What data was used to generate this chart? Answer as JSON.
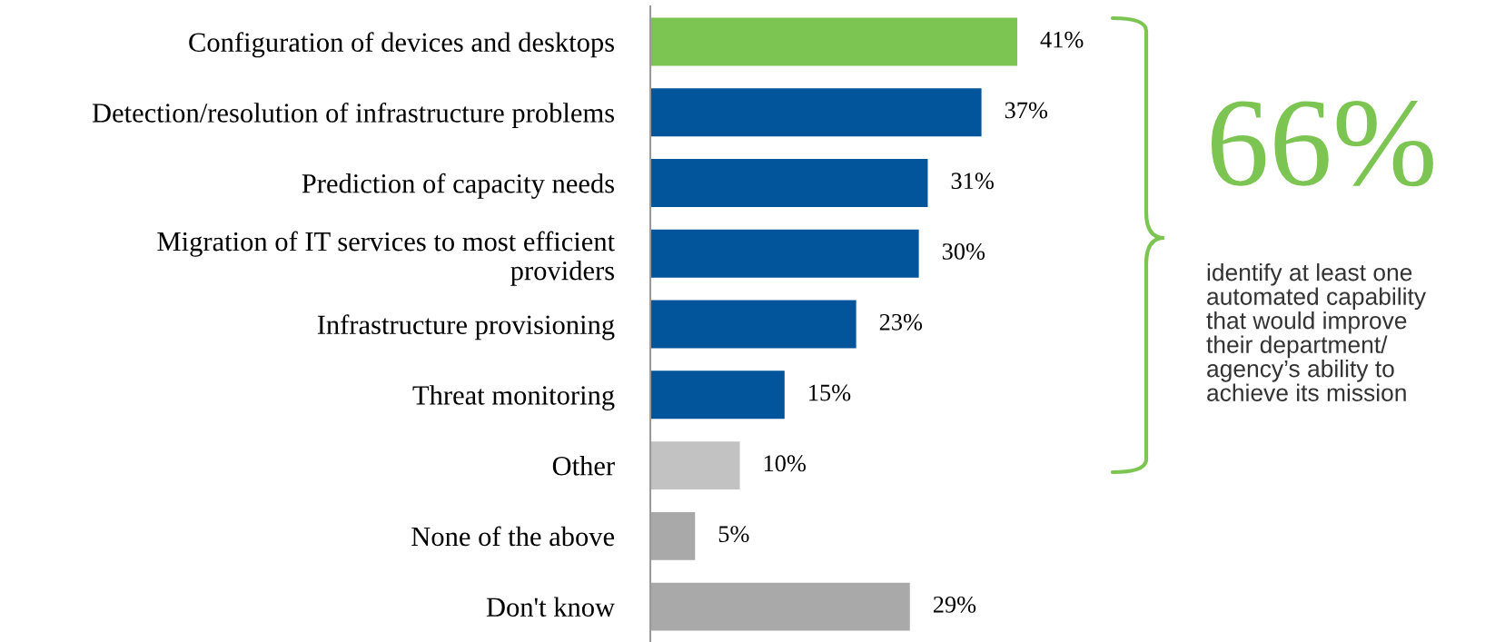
{
  "chart_data": {
    "type": "bar",
    "orientation": "horizontal",
    "categories": [
      "Configuration of devices and desktops",
      "Detection/resolution of infrastructure problems",
      "Prediction of capacity needs",
      "Migration of IT services to most efficient\nproviders",
      "Infrastructure provisioning",
      "Threat monitoring",
      "Other",
      "None of the above",
      "Don't know"
    ],
    "values": [
      41,
      37,
      31,
      30,
      23,
      15,
      10,
      5,
      29
    ],
    "colors": [
      "#7dc552",
      "#02559a",
      "#02559a",
      "#02559a",
      "#02559a",
      "#02559a",
      "#c2c2c2",
      "#a9a9a9",
      "#a9a9a9"
    ],
    "value_labels": [
      "41%",
      "37%",
      "31%",
      "30%",
      "23%",
      "15%",
      "10%",
      "5%",
      "29%"
    ],
    "tick_labels": "y",
    "grid": false,
    "legend": false,
    "annotations": [
      "66%",
      "identify at least one\nautomated capability\nthat would improve\ntheir department/\nagency’s ability to\nachieve its mission"
    ]
  }
}
